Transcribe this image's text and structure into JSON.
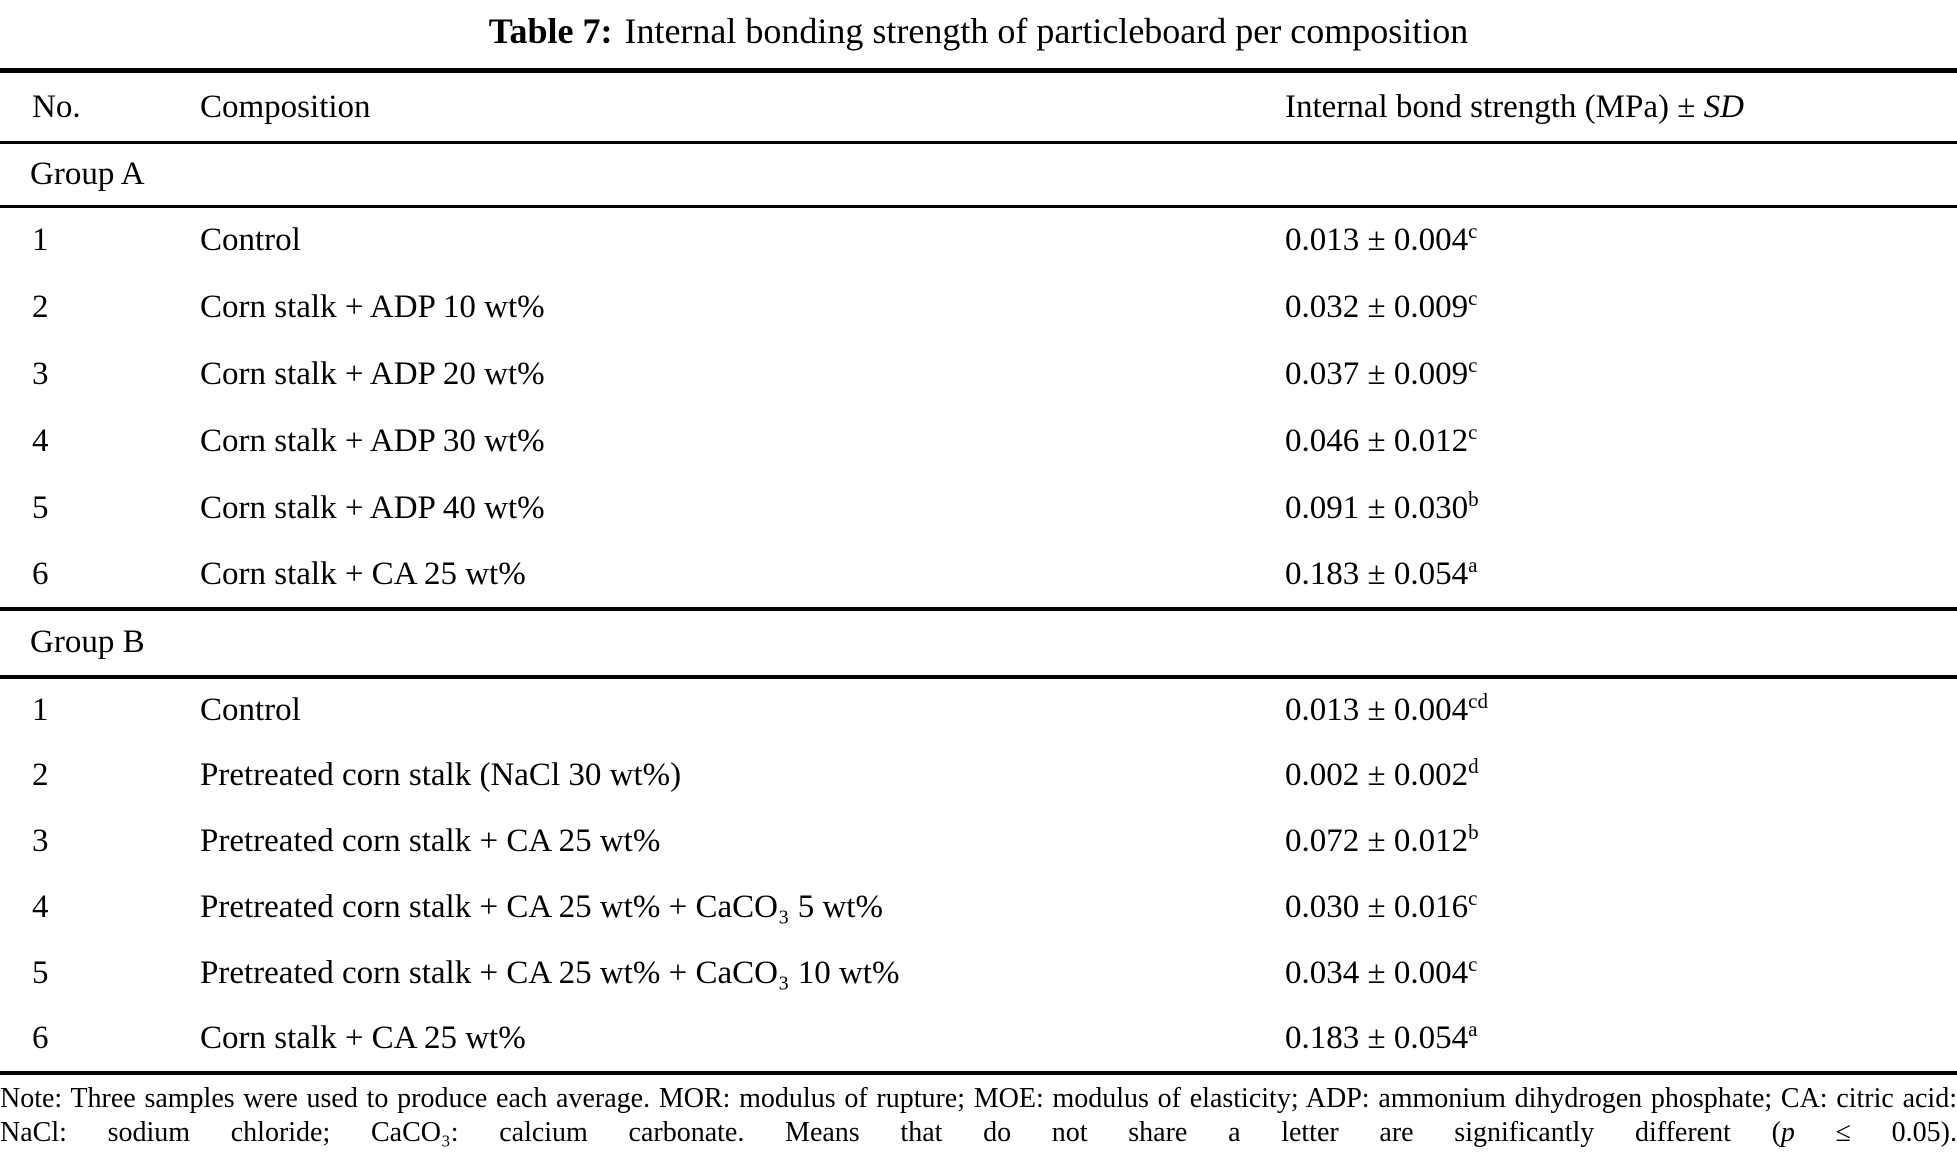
{
  "title": {
    "label": "Table 7:",
    "text": "Internal bonding strength of particleboard per composition"
  },
  "header": {
    "no": "No.",
    "composition": "Composition",
    "strength_prefix": "Internal bond strength (MPa) ± ",
    "strength_sd": "SD"
  },
  "groups": [
    {
      "label": "Group A",
      "rows": [
        {
          "no": "1",
          "composition": "Control",
          "value": "0.013 ± 0.004",
          "sig": "c"
        },
        {
          "no": "2",
          "composition": "Corn stalk + ADP 10 wt%",
          "value": "0.032 ± 0.009",
          "sig": "c"
        },
        {
          "no": "3",
          "composition": "Corn stalk + ADP 20 wt%",
          "value": "0.037 ± 0.009",
          "sig": "c"
        },
        {
          "no": "4",
          "composition": "Corn stalk + ADP 30 wt%",
          "value": "0.046 ± 0.012",
          "sig": "c"
        },
        {
          "no": "5",
          "composition": "Corn stalk + ADP 40 wt%",
          "value": "0.091 ± 0.030",
          "sig": "b"
        },
        {
          "no": "6",
          "composition": "Corn stalk + CA 25 wt%",
          "value": "0.183 ± 0.054",
          "sig": "a"
        }
      ]
    },
    {
      "label": "Group B",
      "rows": [
        {
          "no": "1",
          "composition": "Control",
          "value": "0.013 ± 0.004",
          "sig": "cd"
        },
        {
          "no": "2",
          "composition": "Pretreated corn stalk (NaCl 30 wt%)",
          "value": "0.002 ± 0.002",
          "sig": "d"
        },
        {
          "no": "3",
          "composition": "Pretreated corn stalk + CA 25 wt%",
          "value": "0.072 ± 0.012",
          "sig": "b"
        },
        {
          "no": "4",
          "composition": "Pretreated corn stalk + CA 25 wt% + CaCO₃ 5 wt%",
          "value": "0.030 ± 0.016",
          "sig": "c"
        },
        {
          "no": "5",
          "composition": "Pretreated corn stalk + CA 25 wt% + CaCO₃ 10 wt%",
          "value": "0.034 ± 0.004",
          "sig": "c"
        },
        {
          "no": "6",
          "composition": "Corn stalk + CA 25 wt%",
          "value": "0.183 ± 0.054",
          "sig": "a"
        }
      ]
    }
  ],
  "note": {
    "part1": "Note: Three samples were used to produce each average. MOR: modulus of rupture; MOE: modulus of elasticity; ADP: ammonium dihydrogen phosphate; CA: citric acid: NaCl: sodium chloride; CaCO₃: calcium carbonate. Means that do not share a letter are significantly different (",
    "p_symbol": "p",
    "part2": " ≤ 0.05)."
  }
}
